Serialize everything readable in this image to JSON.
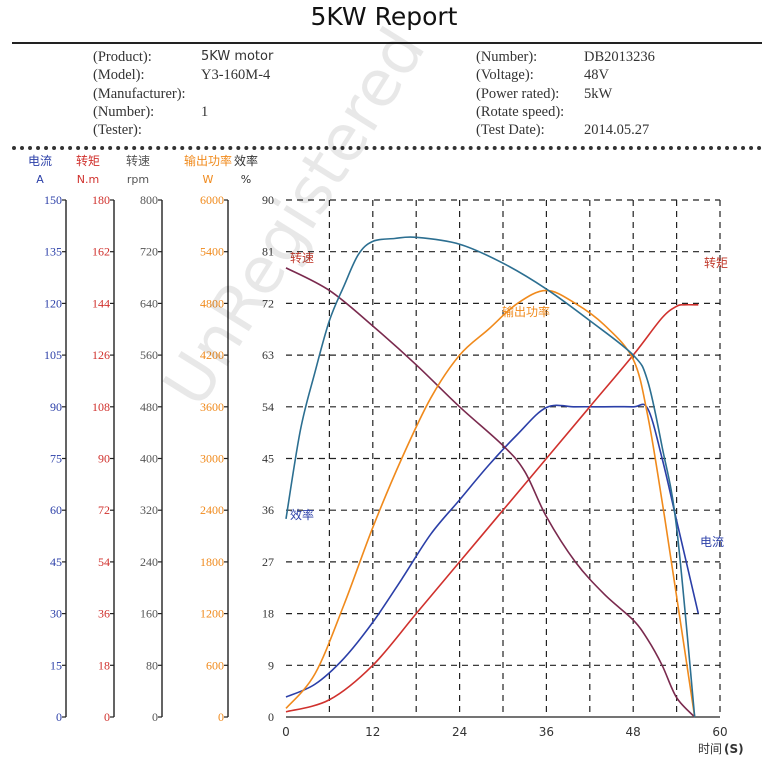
{
  "report": {
    "title": "5KW Report",
    "left": [
      {
        "label": "(Product):",
        "value": "5KW motor"
      },
      {
        "label": "(Model):",
        "value": "Y3-160M-4"
      },
      {
        "label": "(Manufacturer):",
        "value": ""
      },
      {
        "label": "(Number):",
        "value": "1"
      },
      {
        "label": "(Tester):",
        "value": ""
      }
    ],
    "right": [
      {
        "label": "(Number):",
        "value": "DB2013236"
      },
      {
        "label": "(Voltage):",
        "value": "48V"
      },
      {
        "label": "(Power rated):",
        "value": "5kW"
      },
      {
        "label": "(Rotate speed):",
        "value": ""
      },
      {
        "label": "(Test Date):",
        "value": "2014.05.27"
      }
    ],
    "watermark": "UnRegistered"
  },
  "chart_data": {
    "type": "line",
    "x": {
      "label": "时间",
      "unit": "(S)",
      "range": [
        0,
        60
      ],
      "ticks": [
        0,
        12,
        24,
        36,
        48,
        60
      ]
    },
    "axes": [
      {
        "name": "电流",
        "unit": "A",
        "color": "#2b3fa8",
        "ticks": [
          0,
          15,
          30,
          45,
          60,
          75,
          90,
          105,
          120,
          135,
          150
        ]
      },
      {
        "name": "转矩",
        "unit": "N.m",
        "color": "#d0312d",
        "ticks": [
          0,
          18,
          36,
          54,
          72,
          90,
          108,
          126,
          144,
          162,
          180
        ]
      },
      {
        "name": "转速",
        "unit": "rpm",
        "color": "#555555",
        "ticks": [
          0,
          80,
          160,
          240,
          320,
          400,
          480,
          560,
          640,
          720,
          800
        ]
      },
      {
        "name": "输出功率",
        "unit": "W",
        "color": "#f08a1c",
        "ticks": [
          0,
          600,
          1200,
          1800,
          2400,
          3000,
          3600,
          4200,
          4800,
          5400,
          6000
        ]
      },
      {
        "name": "效率",
        "unit": "%",
        "color": "#333333",
        "ticks": [
          0,
          9,
          18,
          27,
          36,
          45,
          54,
          63,
          72,
          81,
          90
        ]
      }
    ],
    "grid": true,
    "series": [
      {
        "name": "电流",
        "label": "电流",
        "color": "#2b3fa8",
        "axis": "A",
        "points": [
          [
            0,
            5.8
          ],
          [
            4,
            9.5
          ],
          [
            8,
            17
          ],
          [
            12,
            27.5
          ],
          [
            16,
            40
          ],
          [
            20,
            53
          ],
          [
            24,
            63
          ],
          [
            28,
            73
          ],
          [
            32,
            82
          ],
          [
            36,
            89.8
          ],
          [
            40,
            90
          ],
          [
            44,
            90
          ],
          [
            48,
            90
          ],
          [
            50,
            89.5
          ],
          [
            52,
            75
          ],
          [
            54,
            57
          ],
          [
            56,
            39
          ],
          [
            57,
            30
          ]
        ]
      },
      {
        "name": "转矩",
        "label": "转矩",
        "color": "#d0312d",
        "axis": "N.m",
        "points": [
          [
            0,
            1.8
          ],
          [
            6,
            6
          ],
          [
            12,
            18
          ],
          [
            18,
            36
          ],
          [
            24,
            54
          ],
          [
            30,
            72
          ],
          [
            36,
            90
          ],
          [
            42,
            108
          ],
          [
            48,
            126
          ],
          [
            52,
            139
          ],
          [
            54,
            143
          ],
          [
            55,
            143.5
          ],
          [
            57,
            143.5
          ]
        ]
      },
      {
        "name": "转速",
        "label": "转速",
        "color": "#7a2a4e",
        "axis": "rpm",
        "points": [
          [
            0,
            695
          ],
          [
            6,
            660
          ],
          [
            12,
            605
          ],
          [
            18,
            545
          ],
          [
            24,
            480
          ],
          [
            30,
            420
          ],
          [
            33,
            380
          ],
          [
            36,
            310
          ],
          [
            40,
            240
          ],
          [
            44,
            190
          ],
          [
            48,
            150
          ],
          [
            50,
            120
          ],
          [
            52,
            80
          ],
          [
            54,
            30
          ],
          [
            56.5,
            0
          ]
        ]
      },
      {
        "name": "输出功率",
        "label": "输出功率",
        "color": "#f08a1c",
        "axis": "W",
        "points": [
          [
            0,
            100
          ],
          [
            4,
            500
          ],
          [
            8,
            1300
          ],
          [
            12,
            2200
          ],
          [
            16,
            3000
          ],
          [
            20,
            3700
          ],
          [
            24,
            4200
          ],
          [
            28,
            4500
          ],
          [
            32,
            4800
          ],
          [
            36,
            4950
          ],
          [
            40,
            4800
          ],
          [
            44,
            4550
          ],
          [
            48,
            4150
          ],
          [
            50,
            3500
          ],
          [
            52,
            2500
          ],
          [
            54,
            1400
          ],
          [
            56.5,
            0
          ]
        ]
      },
      {
        "name": "效率",
        "label": "效率",
        "color": "#2c6f91",
        "axis": "%",
        "points": [
          [
            0,
            34.5
          ],
          [
            2,
            50
          ],
          [
            4,
            60
          ],
          [
            6,
            69
          ],
          [
            8,
            75
          ],
          [
            10,
            80.5
          ],
          [
            12,
            82.8
          ],
          [
            15,
            83.3
          ],
          [
            18,
            83.5
          ],
          [
            24,
            82.3
          ],
          [
            30,
            79
          ],
          [
            36,
            74.5
          ],
          [
            42,
            69
          ],
          [
            48,
            63
          ],
          [
            50,
            58.5
          ],
          [
            52,
            47
          ],
          [
            54,
            33
          ],
          [
            56.5,
            0
          ]
        ]
      }
    ],
    "series_labels": [
      "转速",
      "输出功率",
      "效率",
      "电流",
      "转矩"
    ]
  }
}
